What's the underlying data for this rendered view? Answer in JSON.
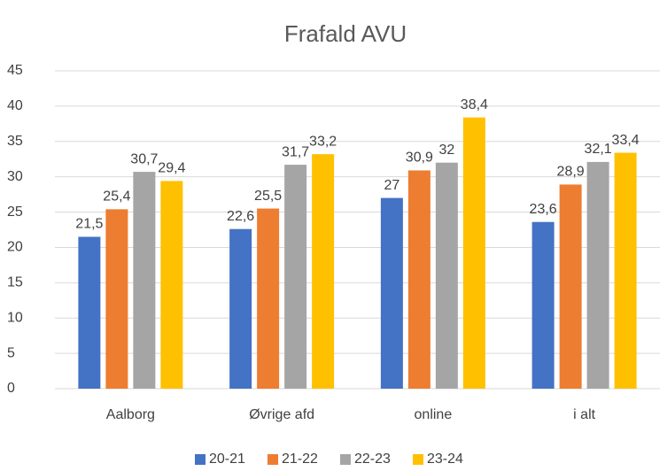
{
  "chart_data": {
    "type": "bar",
    "title": "Frafald AVU",
    "categories": [
      "Aalborg",
      "Øvrige afd",
      "online",
      "i alt"
    ],
    "series": [
      {
        "name": "20-21",
        "color": "#4472c4",
        "values": [
          21.5,
          22.6,
          27,
          23.6
        ],
        "value_labels": [
          "21,5",
          "22,6",
          "27",
          "23,6"
        ]
      },
      {
        "name": "21-22",
        "color": "#ed7d31",
        "values": [
          25.4,
          25.5,
          30.9,
          28.9
        ],
        "value_labels": [
          "25,4",
          "25,5",
          "30,9",
          "28,9"
        ]
      },
      {
        "name": "22-23",
        "color": "#a5a5a5",
        "values": [
          30.7,
          31.7,
          32,
          32.1
        ],
        "value_labels": [
          "30,7",
          "31,7",
          "32",
          "32,1"
        ]
      },
      {
        "name": "23-24",
        "color": "#ffc000",
        "values": [
          29.4,
          33.2,
          38.4,
          33.4
        ],
        "value_labels": [
          "29,4",
          "33,2",
          "38,4",
          "33,4"
        ]
      }
    ],
    "ylim": [
      0,
      45
    ],
    "yticks": [
      0,
      5,
      10,
      15,
      20,
      25,
      30,
      35,
      40,
      45
    ],
    "grid": true,
    "legend": "bottom"
  }
}
